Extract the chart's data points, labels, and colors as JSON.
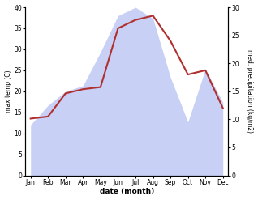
{
  "months": [
    "Jan",
    "Feb",
    "Mar",
    "Apr",
    "May",
    "Jun",
    "Jul",
    "Aug",
    "Sep",
    "Oct",
    "Nov",
    "Dec"
  ],
  "temp": [
    13.5,
    14.0,
    19.5,
    20.5,
    21.0,
    35.0,
    37.0,
    38.0,
    32.0,
    24.0,
    25.0,
    16.0
  ],
  "precip": [
    9.0,
    12.5,
    15.0,
    16.0,
    22.0,
    28.5,
    30.0,
    28.0,
    17.5,
    9.5,
    19.0,
    13.0
  ],
  "temp_color": "#b03030",
  "precip_fill_color": "#c8d0f5",
  "ylabel_left": "max temp (C)",
  "ylabel_right": "med. precipitation (kg/m2)",
  "xlabel": "date (month)",
  "ylim_left": [
    0,
    40
  ],
  "ylim_right": [
    0,
    30
  ],
  "bg_color": "#ffffff"
}
